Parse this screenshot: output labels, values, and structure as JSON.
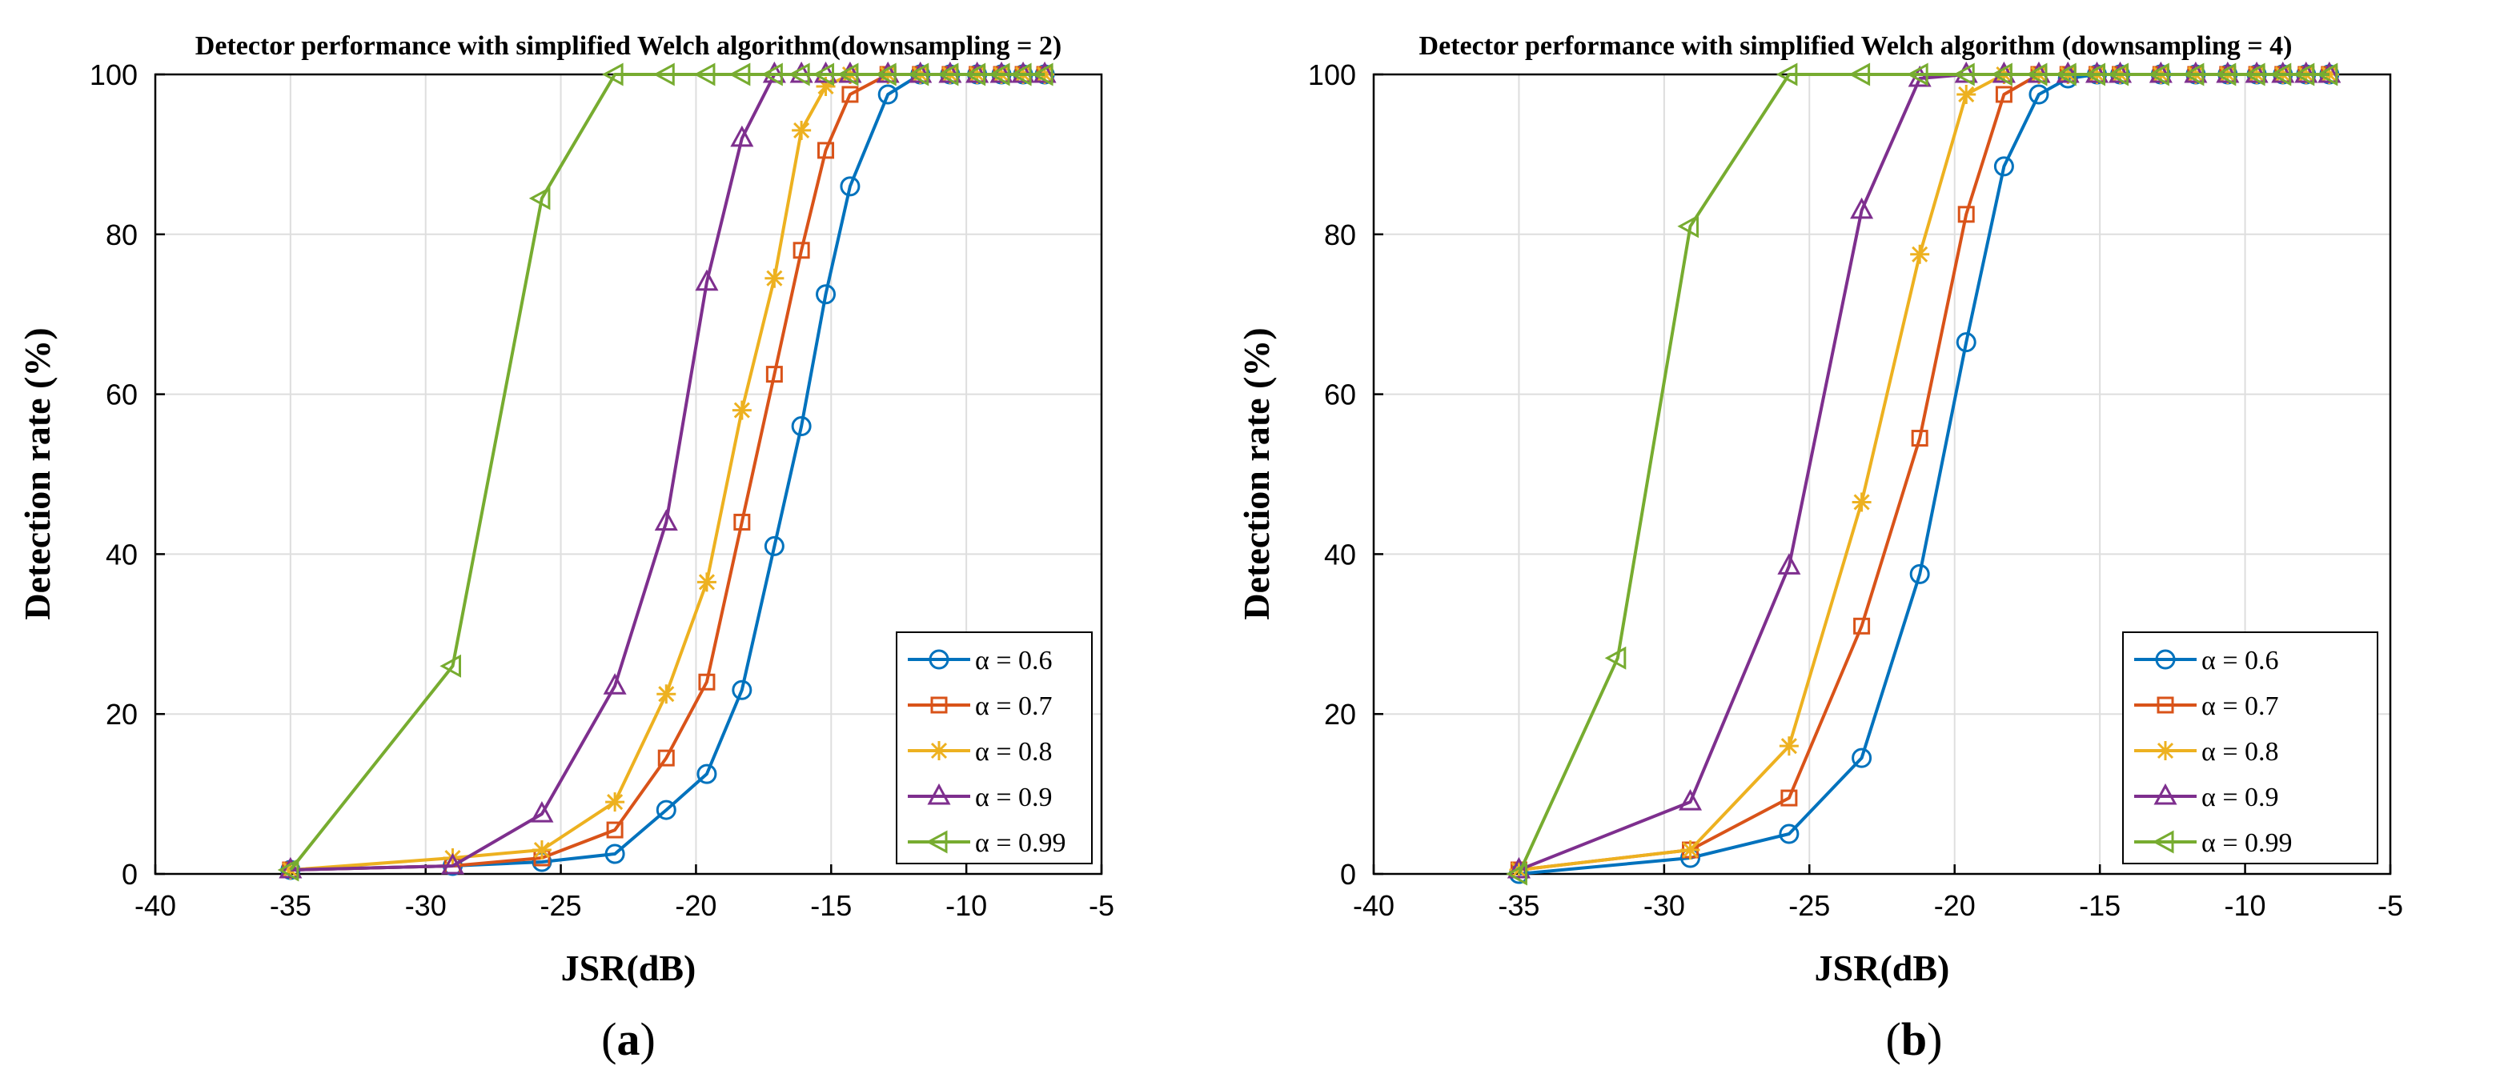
{
  "chart_data": [
    {
      "type": "line",
      "title": "Detector performance with simplified Welch algorithm(downsampling = 2)",
      "xlabel": "JSR(dB)",
      "ylabel": "Detection rate (%)",
      "xlim": [
        -40,
        -5
      ],
      "ylim": [
        0,
        100
      ],
      "xticks": [
        -40,
        -35,
        -30,
        -25,
        -20,
        -15,
        -10,
        -5
      ],
      "yticks": [
        0,
        20,
        40,
        60,
        80,
        100
      ],
      "grid": true,
      "legend_position": "bottom-right",
      "panel_label": "a",
      "series": [
        {
          "name": "α = 0.6",
          "marker": "circle",
          "color": "#0072BD",
          "x": [
            -35,
            -29,
            -25.7,
            -23,
            -21.1,
            -19.6,
            -18.3,
            -17.1,
            -16.1,
            -15.2,
            -14.3,
            -12.9,
            -11.7,
            -10.6,
            -9.6,
            -8.7,
            -7.9,
            -7.1
          ],
          "y": [
            0.5,
            1,
            1.5,
            2.5,
            8,
            12.5,
            23,
            41,
            56,
            72.5,
            86,
            97.5,
            100,
            100,
            100,
            100,
            100,
            100
          ]
        },
        {
          "name": "α = 0.7",
          "marker": "square",
          "color": "#D95319",
          "x": [
            -35,
            -29,
            -25.7,
            -23,
            -21.1,
            -19.6,
            -18.3,
            -17.1,
            -16.1,
            -15.2,
            -14.3,
            -12.9,
            -11.7,
            -10.6,
            -9.6,
            -8.7,
            -7.9,
            -7.1
          ],
          "y": [
            0.5,
            1,
            2,
            5.5,
            14.5,
            24,
            44,
            62.5,
            78,
            90.5,
            97.5,
            100,
            100,
            100,
            100,
            100,
            100,
            100
          ]
        },
        {
          "name": "α = 0.8",
          "marker": "asterisk",
          "color": "#EDB120",
          "x": [
            -35,
            -29,
            -25.7,
            -23,
            -21.1,
            -19.6,
            -18.3,
            -17.1,
            -16.1,
            -15.2,
            -14.3,
            -12.9,
            -11.7,
            -10.6,
            -9.6,
            -8.7,
            -7.9,
            -7.1
          ],
          "y": [
            0.5,
            2,
            3,
            9,
            22.5,
            36.5,
            58,
            74.5,
            93,
            98.5,
            100,
            100,
            100,
            100,
            100,
            100,
            100,
            100
          ]
        },
        {
          "name": "α = 0.9",
          "marker": "triangle-up",
          "color": "#7E2F8E",
          "x": [
            -35,
            -29,
            -25.7,
            -23,
            -21.1,
            -19.6,
            -18.3,
            -17.1,
            -16.1,
            -15.2,
            -14.3,
            -12.9,
            -11.7,
            -10.6,
            -9.6,
            -8.7,
            -7.9,
            -7.1
          ],
          "y": [
            0.5,
            1,
            7.5,
            23.5,
            44,
            74,
            92,
            100,
            100,
            100,
            100,
            100,
            100,
            100,
            100,
            100,
            100,
            100
          ]
        },
        {
          "name": "α = 0.99",
          "marker": "triangle-left",
          "color": "#77AC30",
          "x": [
            -35,
            -29,
            -25.7,
            -23,
            -21.1,
            -19.6,
            -18.3,
            -17.1,
            -16.1,
            -15.2,
            -14.3,
            -12.9,
            -11.7,
            -10.6,
            -9.6,
            -8.7,
            -7.9,
            -7.1
          ],
          "y": [
            0.5,
            26,
            84.5,
            100,
            100,
            100,
            100,
            100,
            100,
            100,
            100,
            100,
            100,
            100,
            100,
            100,
            100,
            100
          ]
        }
      ]
    },
    {
      "type": "line",
      "title": "Detector performance with simplified Welch algorithm (downsampling = 4)",
      "xlabel": "JSR(dB)",
      "ylabel": "Detection rate (%)",
      "xlim": [
        -40,
        -5
      ],
      "ylim": [
        0,
        100
      ],
      "xticks": [
        -40,
        -35,
        -30,
        -25,
        -20,
        -15,
        -10,
        -5
      ],
      "yticks": [
        0,
        20,
        40,
        60,
        80,
        100
      ],
      "grid": true,
      "legend_position": "bottom-right",
      "panel_label": "b",
      "series": [
        {
          "name": "α = 0.6",
          "marker": "circle",
          "color": "#0072BD",
          "x": [
            -35,
            -29.1,
            -25.7,
            -23.2,
            -21.2,
            -19.6,
            -18.3,
            -17.1,
            -16.1,
            -15.1,
            -14.3,
            -12.9,
            -11.7,
            -10.6,
            -9.6,
            -8.7,
            -7.9,
            -7.1
          ],
          "y": [
            0,
            2,
            5,
            14.5,
            37.5,
            66.5,
            88.5,
            97.5,
            99.5,
            100,
            100,
            100,
            100,
            100,
            100,
            100,
            100,
            100
          ]
        },
        {
          "name": "α = 0.7",
          "marker": "square",
          "color": "#D95319",
          "x": [
            -35,
            -29.1,
            -25.7,
            -23.2,
            -21.2,
            -19.6,
            -18.3,
            -17.1,
            -16.1,
            -15.1,
            -14.3,
            -12.9,
            -11.7,
            -10.6,
            -9.6,
            -8.7,
            -7.9,
            -7.1
          ],
          "y": [
            0.5,
            3,
            9.5,
            31,
            54.5,
            82.5,
            97.5,
            100,
            100,
            100,
            100,
            100,
            100,
            100,
            100,
            100,
            100,
            100
          ]
        },
        {
          "name": "α = 0.8",
          "marker": "asterisk",
          "color": "#EDB120",
          "x": [
            -35,
            -29.1,
            -25.7,
            -23.2,
            -21.2,
            -19.6,
            -18.3,
            -17.1,
            -16.1,
            -15.1,
            -14.3,
            -12.9,
            -11.7,
            -10.6,
            -9.6,
            -8.7,
            -7.9,
            -7.1
          ],
          "y": [
            0.5,
            3,
            16,
            46.5,
            77.5,
            97.5,
            100,
            100,
            100,
            100,
            100,
            100,
            100,
            100,
            100,
            100,
            100,
            100
          ]
        },
        {
          "name": "α = 0.9",
          "marker": "triangle-up",
          "color": "#7E2F8E",
          "x": [
            -35,
            -29.1,
            -25.7,
            -23.2,
            -21.2,
            -19.6,
            -18.3,
            -17.1,
            -16.1,
            -15.1,
            -14.3,
            -12.9,
            -11.7,
            -10.6,
            -9.6,
            -8.7,
            -7.9,
            -7.1
          ],
          "y": [
            0.5,
            9,
            38.5,
            83,
            99.5,
            100,
            100,
            100,
            100,
            100,
            100,
            100,
            100,
            100,
            100,
            100,
            100,
            100
          ]
        },
        {
          "name": "α = 0.99",
          "marker": "triangle-left",
          "color": "#77AC30",
          "x": [
            -35,
            -31.6,
            -29.1,
            -25.7,
            -23.2,
            -21.2,
            -19.6,
            -18.3,
            -17.1,
            -16.1,
            -15.1,
            -14.3,
            -12.9,
            -11.7,
            -10.6,
            -9.6,
            -8.7,
            -7.9,
            -7.1
          ],
          "y": [
            0,
            27,
            81,
            100,
            100,
            100,
            100,
            100,
            100,
            100,
            100,
            100,
            100,
            100,
            100,
            100,
            100,
            100,
            100
          ]
        }
      ]
    }
  ]
}
